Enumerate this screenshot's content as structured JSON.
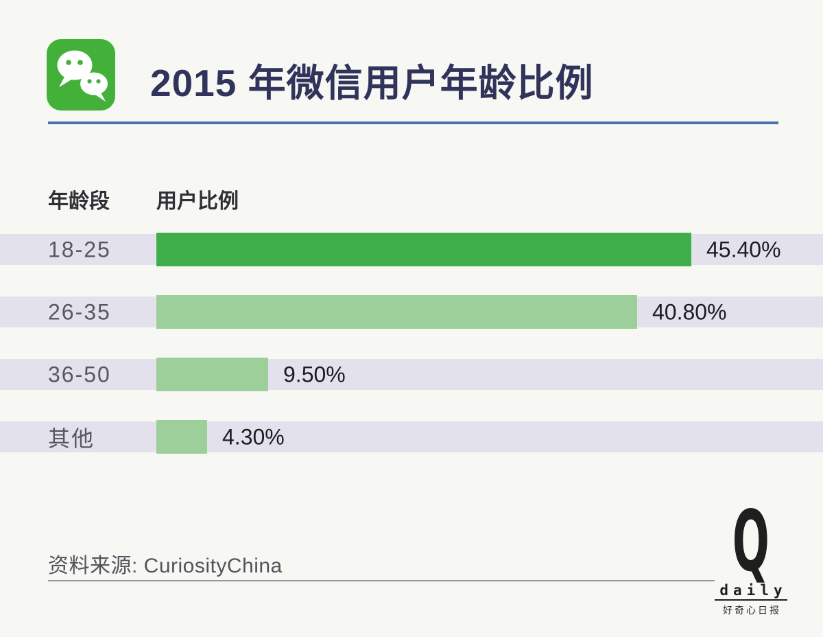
{
  "header": {
    "title": "2015 年微信用户年龄比例"
  },
  "table": {
    "col1_header": "年龄段",
    "col2_header": "用户比例"
  },
  "chart_data": {
    "type": "bar",
    "orientation": "horizontal",
    "title": "2015 年微信用户年龄比例",
    "xlabel": "用户比例",
    "ylabel": "年龄段",
    "categories": [
      "18-25",
      "26-35",
      "36-50",
      "其他"
    ],
    "values": [
      45.4,
      40.8,
      9.5,
      4.3
    ],
    "value_labels": [
      "45.40%",
      "40.80%",
      "9.50%",
      "4.30%"
    ],
    "bar_colors": [
      "#3EAE4A",
      "#9CCF9A",
      "#9CCF9A",
      "#9CCF9A"
    ],
    "xlim": [
      0,
      45.4
    ],
    "grid": false,
    "legend": false,
    "unit": "%"
  },
  "footer": {
    "source": "资料来源: CuriosityChina",
    "logo_letter": "Q",
    "logo_word": "daily",
    "logo_tagline": "好奇心日报"
  },
  "colors": {
    "background": "#F7F7F4",
    "row_stripe": "#E3E2EC",
    "highlight_green": "#3EAE4A",
    "light_green": "#9CCF9A",
    "title_navy": "#30335A",
    "rule_blue": "#4571AD",
    "wechat_green": "#43B139"
  }
}
